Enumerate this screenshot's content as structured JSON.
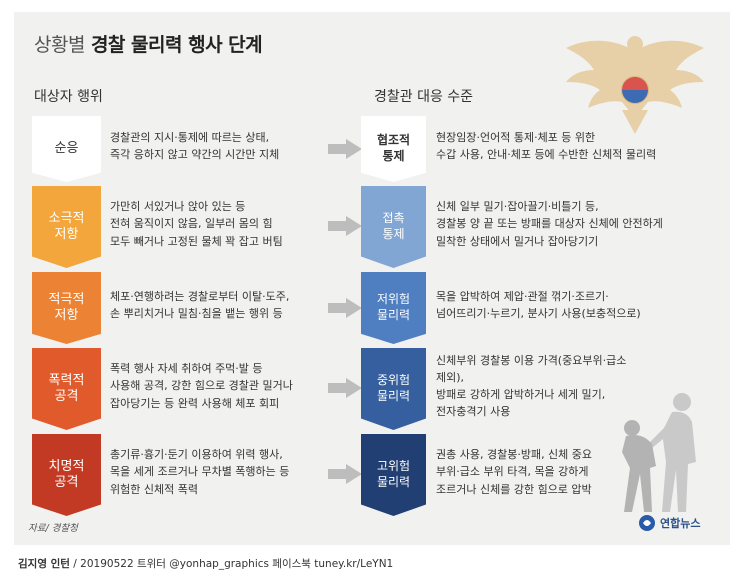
{
  "title": {
    "prefix": "상황별",
    "main": "경찰 물리력 행사 단계"
  },
  "column_headers": {
    "left": "대상자 행위",
    "right": "경찰관 대응 수준"
  },
  "rows": [
    {
      "left_label": "순응",
      "left_description": "경찰관의 지시·통제에 따르는 상태,\n즉각 응하지 않고 약간의 시간만 지체",
      "right_label": "협조적\n통제",
      "right_description": "현장임장·언어적 통제·체포 등 위한\n수갑 사용, 안내·체포 등에 수반한 신체적 물리력",
      "left_color": "#ffffff",
      "right_color": "#ffffff"
    },
    {
      "left_label": "소극적\n저항",
      "left_description": "가만히 서있거나 앉아 있는 등\n전혀 움직이지 않음, 일부러 몸의 힘\n모두 빼거나 고정된 물체 꽉 잡고 버팀",
      "right_label": "접촉\n통제",
      "right_description": "신체 일부 밀기·잡아끌기·비틀기 등,\n경찰봉 양 끝 또는 방패를 대상자 신체에 안전하게\n밀착한 상태에서 밀거나 잡아당기기",
      "left_color": "#f3a63b",
      "right_color": "#82a6d3"
    },
    {
      "left_label": "적극적\n저항",
      "left_description": "체포·연행하려는 경찰로부터 이탈·도주,\n손 뿌리치거나 밀침·침을 뱉는 행위 등",
      "right_label": "저위험\n물리력",
      "right_description": "목을 압박하여 제압·관절 꺾기·조르기·\n넘어뜨리기·누르기, 분사기 사용(보충적으로)",
      "left_color": "#ec8233",
      "right_color": "#4f7ec1"
    },
    {
      "left_label": "폭력적\n공격",
      "left_description": "폭력 행사 자세 취하여 주먹·발 등\n사용해 공격, 강한 힘으로 경찰관 밀거나\n잡아당기는 등 완력 사용해 체포 회피",
      "right_label": "중위험\n물리력",
      "right_description": "신체부위 경찰봉 이용 가격(중요부위·급소 제외),\n방패로 강하게 압박하거나 세게 밀기,\n전자충격기 사용",
      "left_color": "#e05a2b",
      "right_color": "#355f9e"
    },
    {
      "left_label": "치명적\n공격",
      "left_description": "총기류·흉기·둔기 이용하여 위력 행사,\n목을 세게 조르거나 무차별 폭행하는 등\n위험한 신체적 폭력",
      "right_label": "고위험\n물리력",
      "right_description": "권총 사용, 경찰봉·방패, 신체 중요\n부위·급소 부위 타격, 목을 강하게\n조르거나 신체를 강한 힘으로 압박",
      "left_color": "#c33a24",
      "right_color": "#223f73"
    }
  ],
  "source": "자료/ 경찰청",
  "logo_text": "연합뉴스",
  "credit": {
    "author": "김지영 인턴",
    "rest": " / 20190522 트위터 @yonhap_graphics  페이스북 tuney.kr/LeYN1"
  },
  "icons": [
    "police-emblem-icon",
    "arrow-right-icon",
    "officer-arrest-illustration",
    "yonhap-logo-icon"
  ],
  "colors": {
    "background": "#f1f1f0",
    "arrow": "#bdbdbd",
    "emblem_gold": "#e4c590"
  }
}
